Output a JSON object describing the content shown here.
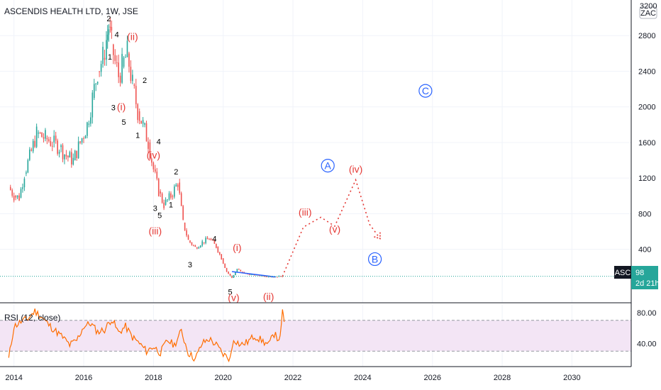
{
  "header": {
    "title": "ASCENDIS HEALTH LTD, 1W, JSE",
    "scale_mode": "ZAC"
  },
  "price_panel": {
    "y_ticks": [
      400,
      800,
      1200,
      1600,
      2000,
      2400,
      2800
    ],
    "y_top_tick": "3200",
    "ymin": -200,
    "ymax": 3200,
    "last_price": "98",
    "symbol": "ASC",
    "countdown": "2d 21h"
  },
  "x_axis": {
    "ticks": [
      "2014",
      "2016",
      "2018",
      "2020",
      "2022",
      "2024",
      "2026",
      "2028",
      "2030"
    ],
    "xmin": 2013.6,
    "xmax": 2031.7
  },
  "rsi_panel": {
    "label": "RSI (12, close)",
    "ticks": [
      "80.00",
      "40.00"
    ],
    "upper": 70,
    "lower": 30,
    "ymin": 10,
    "ymax": 90
  },
  "colors": {
    "candle_up": "#26a69a",
    "candle_down": "#ef5350",
    "rsi_line": "#ff6d00",
    "wave_red": "#e53935",
    "wave_blue": "#2962ff",
    "band": "#f3e5f5"
  },
  "chart_data": {
    "type": "candlestick",
    "price_close": [
      [
        2013.85,
        1100
      ],
      [
        2014.0,
        1000
      ],
      [
        2014.15,
        980
      ],
      [
        2014.3,
        1250
      ],
      [
        2014.5,
        1500
      ],
      [
        2014.65,
        1700
      ],
      [
        2014.9,
        1650
      ],
      [
        2015.1,
        1600
      ],
      [
        2015.3,
        1550
      ],
      [
        2015.5,
        1450
      ],
      [
        2015.7,
        1400
      ],
      [
        2015.9,
        1600
      ],
      [
        2016.1,
        1800
      ],
      [
        2016.25,
        2100
      ],
      [
        2016.4,
        2400
      ],
      [
        2016.55,
        2550
      ],
      [
        2016.65,
        2750
      ],
      [
        2016.72,
        2900
      ],
      [
        2016.8,
        2700
      ],
      [
        2016.9,
        2500
      ],
      [
        2017.0,
        2350
      ],
      [
        2017.1,
        2450
      ],
      [
        2017.25,
        2600
      ],
      [
        2017.4,
        2250
      ],
      [
        2017.55,
        1950
      ],
      [
        2017.7,
        1800
      ],
      [
        2017.85,
        1600
      ],
      [
        2018.0,
        1300
      ],
      [
        2018.15,
        1050
      ],
      [
        2018.3,
        900
      ],
      [
        2018.5,
        1000
      ],
      [
        2018.7,
        1150
      ],
      [
        2018.85,
        700
      ],
      [
        2019.0,
        500
      ],
      [
        2019.2,
        420
      ],
      [
        2019.4,
        480
      ],
      [
        2019.6,
        520
      ],
      [
        2019.8,
        430
      ],
      [
        2019.95,
        300
      ],
      [
        2020.1,
        150
      ],
      [
        2020.25,
        80
      ],
      [
        2020.4,
        180
      ],
      [
        2020.5,
        150
      ],
      [
        2020.7,
        120
      ],
      [
        2020.9,
        110
      ],
      [
        2021.1,
        105
      ],
      [
        2021.3,
        95
      ],
      [
        2021.5,
        90
      ],
      [
        2021.6,
        100
      ],
      [
        2021.7,
        98
      ]
    ],
    "projection": [
      [
        2021.7,
        98
      ],
      [
        2022.3,
        650
      ],
      [
        2022.8,
        760
      ],
      [
        2023.2,
        660
      ],
      [
        2023.8,
        1180
      ],
      [
        2024.2,
        680
      ],
      [
        2024.5,
        520
      ]
    ],
    "trendline": [
      [
        2020.25,
        150
      ],
      [
        2021.5,
        90
      ]
    ],
    "rsi": [
      [
        2013.85,
        20
      ],
      [
        2014.0,
        62
      ],
      [
        2014.2,
        68
      ],
      [
        2014.4,
        72
      ],
      [
        2014.6,
        82
      ],
      [
        2014.8,
        74
      ],
      [
        2015.0,
        64
      ],
      [
        2015.2,
        56
      ],
      [
        2015.4,
        48
      ],
      [
        2015.6,
        38
      ],
      [
        2015.8,
        44
      ],
      [
        2016.0,
        62
      ],
      [
        2016.2,
        66
      ],
      [
        2016.4,
        55
      ],
      [
        2016.6,
        58
      ],
      [
        2016.8,
        72
      ],
      [
        2017.0,
        54
      ],
      [
        2017.2,
        62
      ],
      [
        2017.4,
        48
      ],
      [
        2017.6,
        40
      ],
      [
        2017.8,
        30
      ],
      [
        2018.0,
        36
      ],
      [
        2018.2,
        28
      ],
      [
        2018.4,
        44
      ],
      [
        2018.6,
        38
      ],
      [
        2018.8,
        56
      ],
      [
        2019.0,
        28
      ],
      [
        2019.2,
        20
      ],
      [
        2019.4,
        40
      ],
      [
        2019.6,
        46
      ],
      [
        2019.8,
        38
      ],
      [
        2020.0,
        26
      ],
      [
        2020.2,
        20
      ],
      [
        2020.3,
        46
      ],
      [
        2020.5,
        38
      ],
      [
        2020.7,
        42
      ],
      [
        2020.9,
        50
      ],
      [
        2021.1,
        44
      ],
      [
        2021.3,
        38
      ],
      [
        2021.5,
        56
      ],
      [
        2021.6,
        40
      ],
      [
        2021.7,
        80
      ],
      [
        2021.75,
        68
      ]
    ],
    "wave_labels": [
      {
        "text": "2",
        "x": 2016.72,
        "y": 2960,
        "style": "black"
      },
      {
        "text": "4",
        "x": 2016.95,
        "y": 2780,
        "style": "black"
      },
      {
        "text": "(ii)",
        "x": 2017.4,
        "y": 2750,
        "style": "red"
      },
      {
        "text": "1",
        "x": 2016.75,
        "y": 2530,
        "style": "black"
      },
      {
        "text": "2",
        "x": 2017.75,
        "y": 2270,
        "style": "black"
      },
      {
        "text": "3",
        "x": 2016.85,
        "y": 1960,
        "style": "black"
      },
      {
        "text": "(i)",
        "x": 2017.08,
        "y": 1960,
        "style": "red"
      },
      {
        "text": "5",
        "x": 2017.15,
        "y": 1800,
        "style": "black"
      },
      {
        "text": "1",
        "x": 2017.55,
        "y": 1650,
        "style": "black"
      },
      {
        "text": "4",
        "x": 2018.15,
        "y": 1580,
        "style": "black"
      },
      {
        "text": "(iv)",
        "x": 2018.0,
        "y": 1420,
        "style": "red"
      },
      {
        "text": "2",
        "x": 2018.65,
        "y": 1240,
        "style": "black"
      },
      {
        "text": "1",
        "x": 2018.5,
        "y": 870,
        "style": "black"
      },
      {
        "text": "3",
        "x": 2018.05,
        "y": 830,
        "style": "black"
      },
      {
        "text": "5",
        "x": 2018.18,
        "y": 750,
        "style": "black"
      },
      {
        "text": "(iii)",
        "x": 2018.05,
        "y": 570,
        "style": "red"
      },
      {
        "text": "4",
        "x": 2019.75,
        "y": 490,
        "style": "black"
      },
      {
        "text": "3",
        "x": 2019.05,
        "y": 200,
        "style": "black"
      },
      {
        "text": "(i)",
        "x": 2020.4,
        "y": 380,
        "style": "red"
      },
      {
        "text": "5",
        "x": 2020.2,
        "y": -110,
        "style": "black"
      },
      {
        "text": "(v)",
        "x": 2020.3,
        "y": -180,
        "style": "red"
      },
      {
        "text": "(ii)",
        "x": 2021.3,
        "y": -170,
        "style": "red"
      },
      {
        "text": "(iii)",
        "x": 2022.35,
        "y": 780,
        "style": "red"
      },
      {
        "text": "(v)",
        "x": 2023.2,
        "y": 590,
        "style": "red"
      },
      {
        "text": "(iv)",
        "x": 2023.8,
        "y": 1260,
        "style": "red"
      }
    ],
    "circle_labels": [
      {
        "text": "A",
        "x": 2023.0,
        "y": 1340
      },
      {
        "text": "B",
        "x": 2024.35,
        "y": 290
      },
      {
        "text": "C",
        "x": 2025.8,
        "y": 2180
      }
    ]
  }
}
